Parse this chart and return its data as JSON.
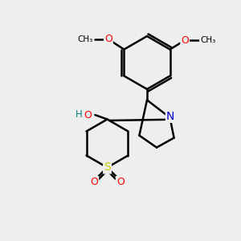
{
  "bg_color": "#eeeeee",
  "bond_color": "#000000",
  "bond_width": 1.8,
  "atom_colors": {
    "O": "#ff0000",
    "N": "#0000cc",
    "S": "#cccc00",
    "H": "#008080",
    "C": "#000000"
  },
  "font_size": 9
}
